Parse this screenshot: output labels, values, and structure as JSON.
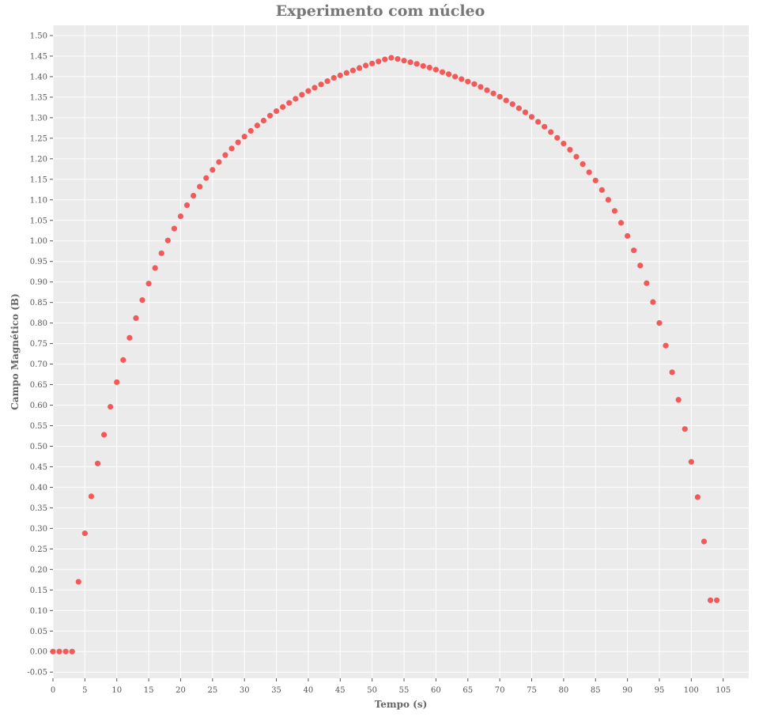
{
  "chart_data": {
    "type": "scatter",
    "title": "Experimento com núcleo",
    "xlabel": "Tempo (s)",
    "ylabel": "Campo Magnético (B)",
    "xlim": [
      0,
      109
    ],
    "ylim": [
      -0.065,
      1.525
    ],
    "x_ticks": [
      0,
      5,
      10,
      15,
      20,
      25,
      30,
      35,
      40,
      45,
      50,
      55,
      60,
      65,
      70,
      75,
      80,
      85,
      90,
      95,
      100,
      105
    ],
    "y_ticks": [
      -0.05,
      0.0,
      0.05,
      0.1,
      0.15,
      0.2,
      0.25,
      0.3,
      0.35,
      0.4,
      0.45,
      0.5,
      0.55,
      0.6,
      0.65,
      0.7,
      0.75,
      0.8,
      0.85,
      0.9,
      0.95,
      1.0,
      1.05,
      1.1,
      1.15,
      1.2,
      1.25,
      1.3,
      1.35,
      1.4,
      1.45,
      1.5
    ],
    "grid": true,
    "marker_color": "#f25a5a",
    "background_color": "#ebebeb",
    "points": [
      [
        0,
        0.0
      ],
      [
        1,
        0.0
      ],
      [
        2,
        0.0
      ],
      [
        3,
        0.0
      ],
      [
        4,
        0.17
      ],
      [
        5,
        0.288
      ],
      [
        6,
        0.378
      ],
      [
        7,
        0.458
      ],
      [
        8,
        0.528
      ],
      [
        9,
        0.596
      ],
      [
        10,
        0.656
      ],
      [
        11,
        0.71
      ],
      [
        12,
        0.764
      ],
      [
        13,
        0.812
      ],
      [
        14,
        0.856
      ],
      [
        15,
        0.896
      ],
      [
        16,
        0.934
      ],
      [
        17,
        0.97
      ],
      [
        18,
        1.001
      ],
      [
        19,
        1.03
      ],
      [
        20,
        1.06
      ],
      [
        21,
        1.087
      ],
      [
        22,
        1.11
      ],
      [
        23,
        1.132
      ],
      [
        24,
        1.153
      ],
      [
        25,
        1.173
      ],
      [
        26,
        1.192
      ],
      [
        27,
        1.209
      ],
      [
        28,
        1.225
      ],
      [
        29,
        1.24
      ],
      [
        30,
        1.254
      ],
      [
        31,
        1.268
      ],
      [
        32,
        1.281
      ],
      [
        33,
        1.293
      ],
      [
        34,
        1.305
      ],
      [
        35,
        1.316
      ],
      [
        36,
        1.326
      ],
      [
        37,
        1.336
      ],
      [
        38,
        1.346
      ],
      [
        39,
        1.356
      ],
      [
        40,
        1.365
      ],
      [
        41,
        1.373
      ],
      [
        42,
        1.381
      ],
      [
        43,
        1.389
      ],
      [
        44,
        1.397
      ],
      [
        45,
        1.403
      ],
      [
        46,
        1.409
      ],
      [
        47,
        1.415
      ],
      [
        48,
        1.421
      ],
      [
        49,
        1.427
      ],
      [
        50,
        1.432
      ],
      [
        51,
        1.437
      ],
      [
        52,
        1.442
      ],
      [
        53,
        1.446
      ],
      [
        54,
        1.443
      ],
      [
        55,
        1.439
      ],
      [
        56,
        1.435
      ],
      [
        57,
        1.431
      ],
      [
        58,
        1.426
      ],
      [
        59,
        1.422
      ],
      [
        60,
        1.417
      ],
      [
        61,
        1.411
      ],
      [
        62,
        1.406
      ],
      [
        63,
        1.4
      ],
      [
        64,
        1.394
      ],
      [
        65,
        1.388
      ],
      [
        66,
        1.382
      ],
      [
        67,
        1.375
      ],
      [
        68,
        1.367
      ],
      [
        69,
        1.359
      ],
      [
        70,
        1.351
      ],
      [
        71,
        1.342
      ],
      [
        72,
        1.333
      ],
      [
        73,
        1.323
      ],
      [
        74,
        1.313
      ],
      [
        75,
        1.302
      ],
      [
        76,
        1.29
      ],
      [
        77,
        1.278
      ],
      [
        78,
        1.265
      ],
      [
        79,
        1.251
      ],
      [
        80,
        1.237
      ],
      [
        81,
        1.222
      ],
      [
        82,
        1.205
      ],
      [
        83,
        1.187
      ],
      [
        84,
        1.167
      ],
      [
        85,
        1.147
      ],
      [
        86,
        1.124
      ],
      [
        87,
        1.1
      ],
      [
        88,
        1.073
      ],
      [
        89,
        1.044
      ],
      [
        90,
        1.012
      ],
      [
        91,
        0.977
      ],
      [
        92,
        0.94
      ],
      [
        93,
        0.897
      ],
      [
        94,
        0.851
      ],
      [
        95,
        0.8
      ],
      [
        96,
        0.745
      ],
      [
        97,
        0.68
      ],
      [
        98,
        0.613
      ],
      [
        99,
        0.542
      ],
      [
        100,
        0.462
      ],
      [
        101,
        0.376
      ],
      [
        102,
        0.268
      ],
      [
        103,
        0.125
      ],
      [
        104,
        0.125
      ]
    ]
  }
}
